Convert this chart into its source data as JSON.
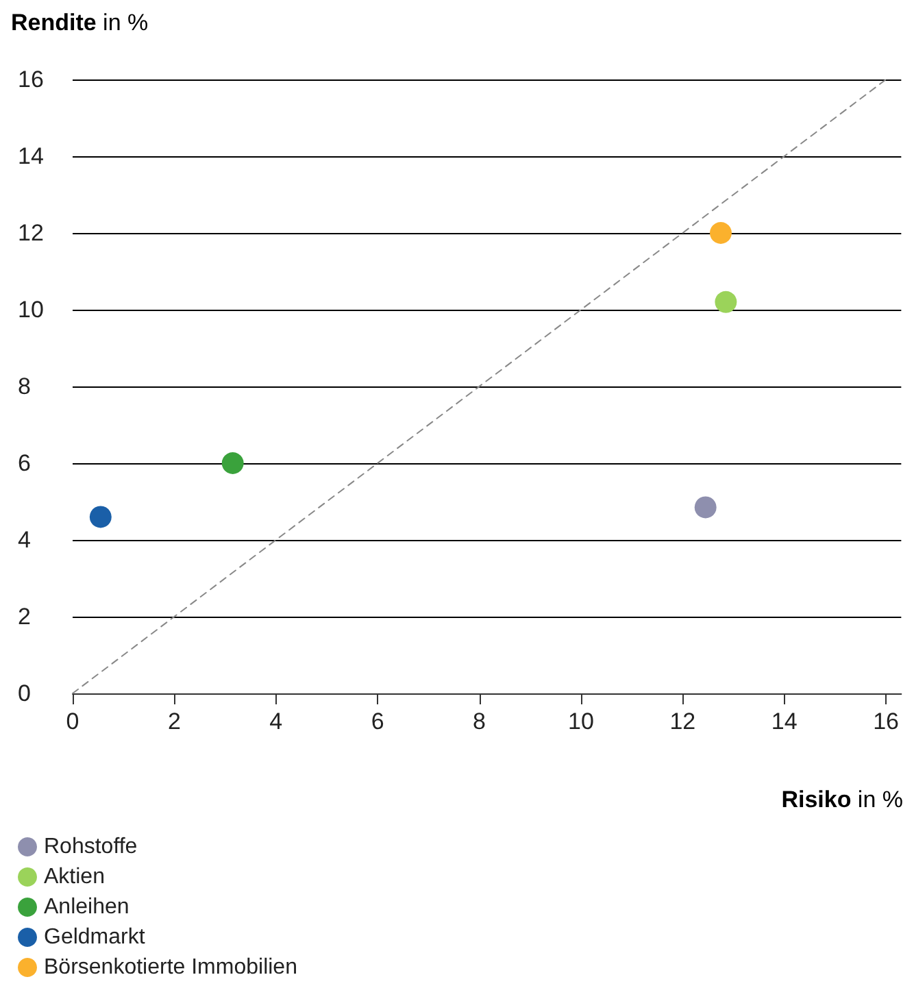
{
  "chart_data": {
    "type": "scatter",
    "xlabel": "Risiko in %",
    "ylabel": "Rendite in %",
    "xlim": [
      0,
      16.3
    ],
    "xticks": [
      0,
      2,
      4,
      6,
      8,
      10,
      12,
      14,
      16
    ],
    "ylim": [
      0,
      16
    ],
    "yticks": [
      0,
      2,
      4,
      6,
      8,
      10,
      12,
      14,
      16
    ],
    "grid": "y",
    "legend": "bottom",
    "marker": "circle",
    "series": [
      {
        "name": "Rohstoffe",
        "color": "#8e8fae",
        "x": [
          12.45
        ],
        "values": [
          4.85
        ]
      },
      {
        "name": "Aktien",
        "color": "#9bd35a",
        "x": [
          12.85
        ],
        "values": [
          10.2
        ]
      },
      {
        "name": "Anleihen",
        "color": "#3aa23c",
        "x": [
          3.15
        ],
        "values": [
          6.0
        ]
      },
      {
        "name": "Geldmarkt",
        "color": "#1a5fa8",
        "x": [
          0.55
        ],
        "values": [
          4.6
        ]
      },
      {
        "name": "Börsenkotierte Immobilien",
        "color": "#fbb12d",
        "x": [
          12.75
        ],
        "values": [
          12.0
        ]
      },
      {
        "type": "line",
        "color": "#888888",
        "line_style": "dashed",
        "marker": "none",
        "x": [
          0,
          16
        ],
        "values": [
          0,
          16
        ]
      }
    ]
  }
}
